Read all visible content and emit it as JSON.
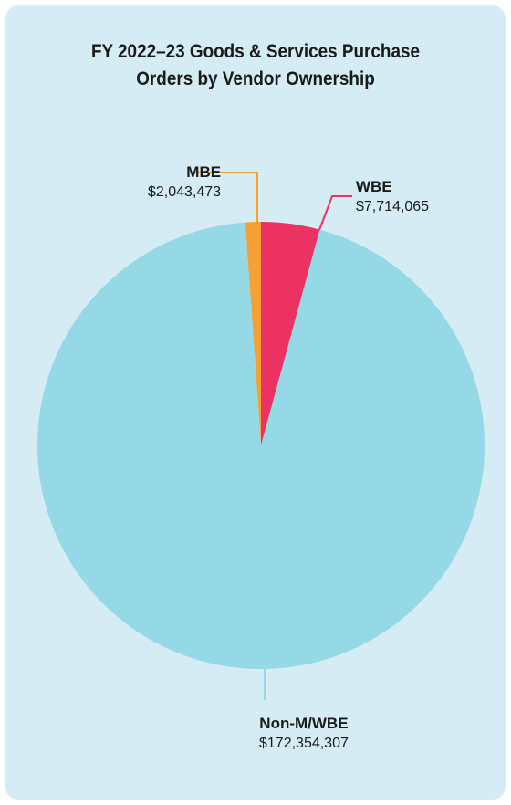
{
  "chart_data": {
    "type": "pie",
    "title_lines": [
      "FY 2022–23 Goods & Services Purchase",
      "Orders by Vendor Ownership"
    ],
    "slices": [
      {
        "label": "Non-M/WBE",
        "value": 172354307,
        "value_label": "$172,354,307",
        "color": "#95d8e6"
      },
      {
        "label": "MBE",
        "value": 2043473,
        "value_label": "$2,043,473",
        "color": "#f6a033"
      },
      {
        "label": "WBE",
        "value": 7714065,
        "value_label": "$7,714,065",
        "color": "#ec3163"
      }
    ]
  },
  "colors": {
    "background": "#d5ecf4",
    "text": "#1a1a1a"
  }
}
